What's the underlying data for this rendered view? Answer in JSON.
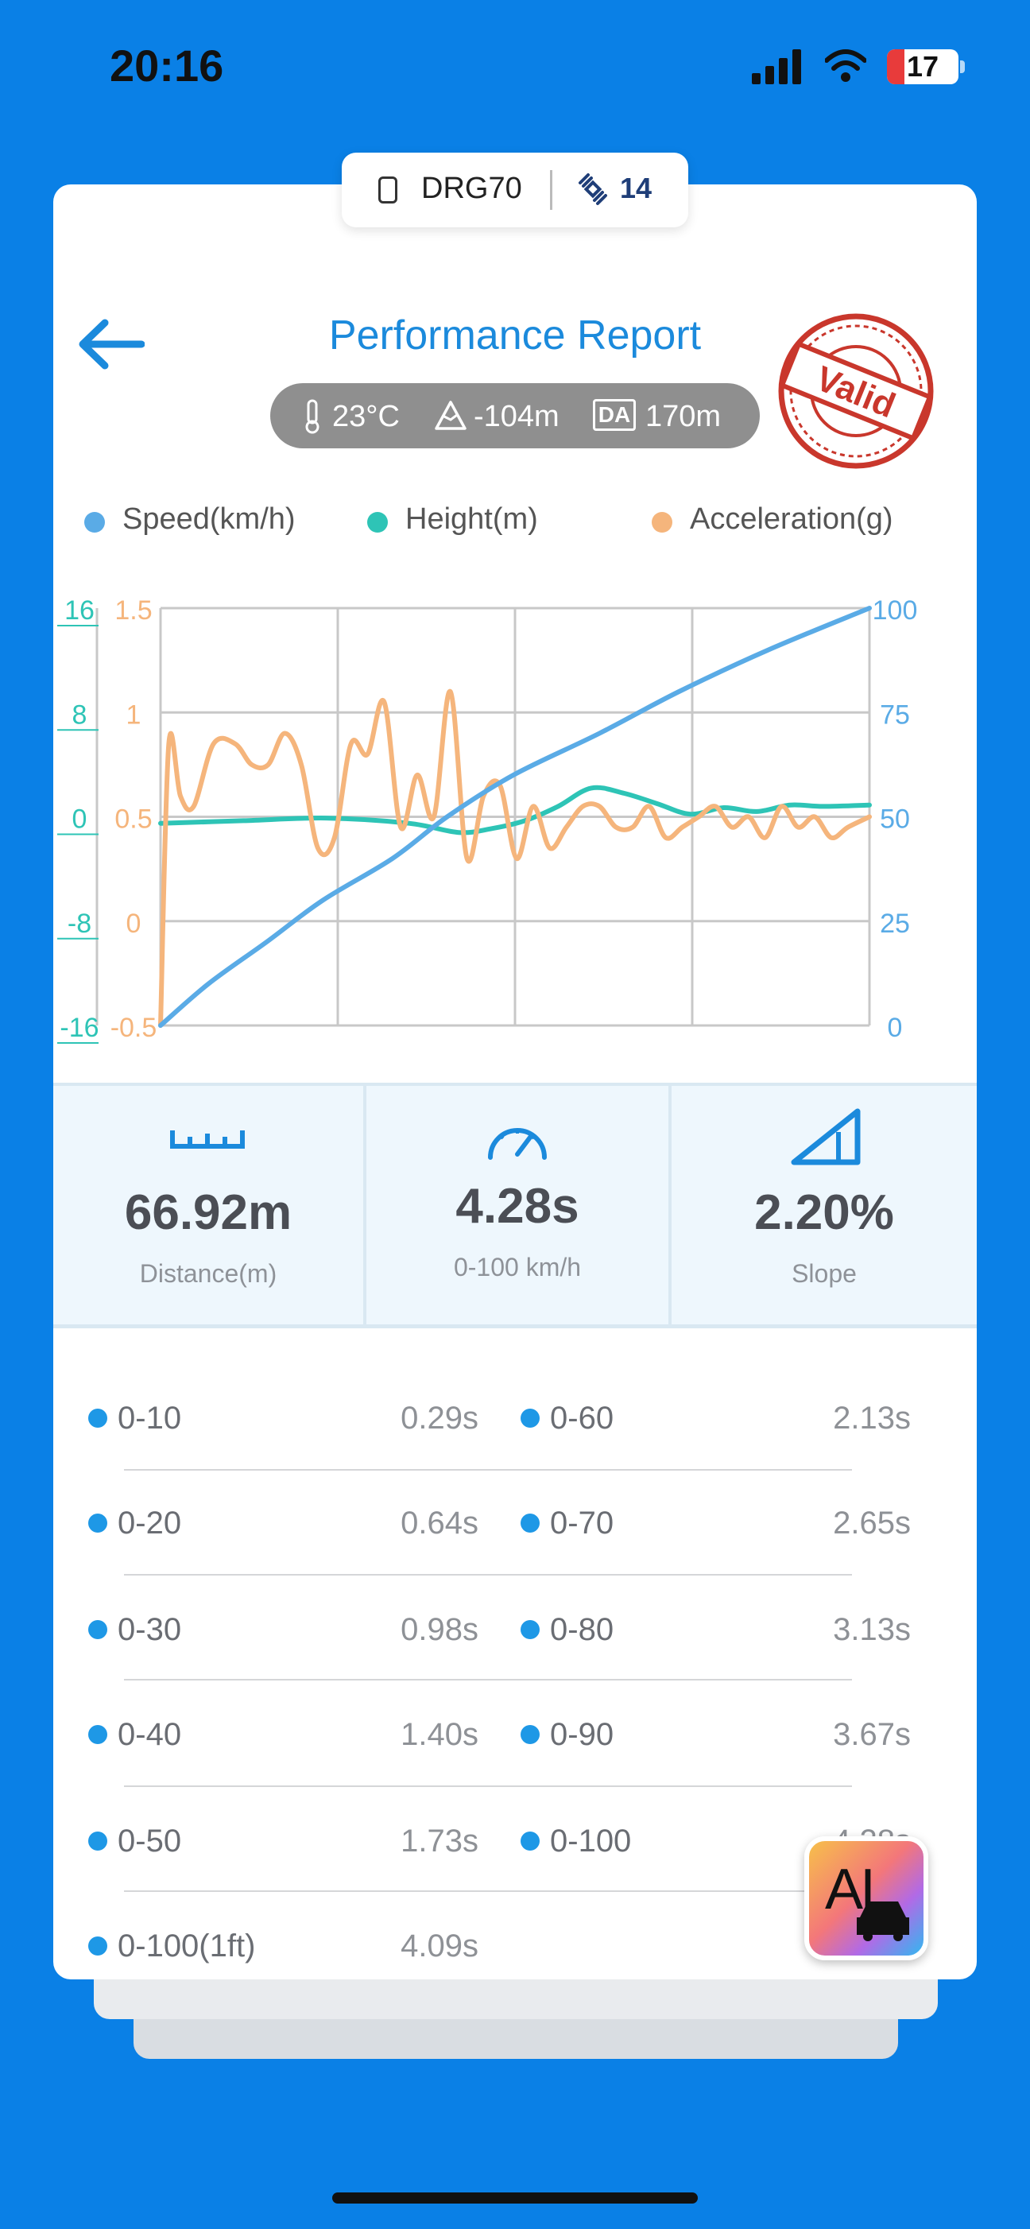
{
  "status_bar": {
    "time": "20:16",
    "battery": "17"
  },
  "device": {
    "name": "DRG70",
    "satellites": "14"
  },
  "header": {
    "title": "Performance Report",
    "stamp_text": "Valid"
  },
  "conditions": {
    "temperature": "23°C",
    "altitude": "-104m",
    "da_badge": "DA",
    "density_altitude": "170m"
  },
  "legend": [
    {
      "label": "Speed(km/h)",
      "color": "#5aabe6"
    },
    {
      "label": "Height(m)",
      "color": "#2ec4b6"
    },
    {
      "label": "Acceleration(g)",
      "color": "#f5b57c"
    }
  ],
  "chart_data": {
    "type": "line",
    "x_range": [
      0,
      4.28
    ],
    "axes": {
      "left_height_ticks": [
        "16",
        "8",
        "0",
        "-8",
        "-16"
      ],
      "left_accel_ticks": [
        "1.5",
        "1",
        "0.5",
        "0",
        "-0.5"
      ],
      "right_speed_ticks": [
        "100",
        "75",
        "50",
        "25",
        "0"
      ],
      "ylim_height": [
        -16,
        16
      ],
      "ylim_accel": [
        -0.5,
        1.5
      ],
      "ylim_speed": [
        0,
        100
      ]
    },
    "grid": true,
    "series": [
      {
        "name": "Speed(km/h)",
        "color": "#5aabe6",
        "axis": "speed",
        "x": [
          0,
          0.29,
          0.64,
          0.98,
          1.4,
          1.73,
          2.13,
          2.65,
          3.13,
          3.67,
          4.28
        ],
        "y": [
          0,
          10,
          20,
          30,
          40,
          50,
          60,
          70,
          80,
          90,
          100
        ]
      },
      {
        "name": "Height(m)",
        "color": "#2ec4b6",
        "axis": "height",
        "x": [
          0,
          0.5,
          1.0,
          1.5,
          1.8,
          2.0,
          2.2,
          2.4,
          2.6,
          2.8,
          3.0,
          3.2,
          3.4,
          3.6,
          3.8,
          4.0,
          4.28
        ],
        "y": [
          -0.5,
          -0.3,
          -0.1,
          -0.5,
          -1.2,
          -0.9,
          -0.3,
          0.8,
          2.2,
          1.8,
          1.0,
          0.2,
          0.7,
          0.4,
          0.9,
          0.8,
          0.9
        ]
      },
      {
        "name": "Acceleration(g)",
        "color": "#f5b57c",
        "axis": "accel",
        "x": [
          0,
          0.05,
          0.12,
          0.2,
          0.32,
          0.45,
          0.55,
          0.65,
          0.75,
          0.85,
          0.95,
          1.05,
          1.15,
          1.25,
          1.35,
          1.45,
          1.55,
          1.65,
          1.75,
          1.85,
          1.95,
          2.05,
          2.15,
          2.25,
          2.35,
          2.45,
          2.55,
          2.65,
          2.75,
          2.85,
          2.95,
          3.05,
          3.15,
          3.25,
          3.35,
          3.45,
          3.55,
          3.65,
          3.75,
          3.85,
          3.95,
          4.05,
          4.15,
          4.28
        ],
        "y": [
          -0.5,
          0.85,
          0.6,
          0.55,
          0.85,
          0.85,
          0.75,
          0.75,
          0.9,
          0.75,
          0.35,
          0.4,
          0.85,
          0.8,
          1.05,
          0.45,
          0.7,
          0.5,
          1.1,
          0.3,
          0.6,
          0.65,
          0.3,
          0.55,
          0.35,
          0.45,
          0.55,
          0.55,
          0.45,
          0.45,
          0.55,
          0.4,
          0.45,
          0.5,
          0.55,
          0.45,
          0.5,
          0.4,
          0.55,
          0.45,
          0.5,
          0.4,
          0.45,
          0.5
        ]
      }
    ]
  },
  "metrics": [
    {
      "value": "66.92m",
      "caption": "Distance(m)",
      "icon": "ruler-icon"
    },
    {
      "value": "4.28s",
      "caption": "0-100 km/h",
      "icon": "speedometer-icon"
    },
    {
      "value": "2.20%",
      "caption": "Slope",
      "icon": "slope-icon"
    }
  ],
  "splits_left": [
    {
      "label": "0-10",
      "value": "0.29s"
    },
    {
      "label": "0-20",
      "value": "0.64s"
    },
    {
      "label": "0-30",
      "value": "0.98s"
    },
    {
      "label": "0-40",
      "value": "1.40s"
    },
    {
      "label": "0-50",
      "value": "1.73s"
    },
    {
      "label": "0-100(1ft)",
      "value": "4.09s"
    }
  ],
  "splits_right": [
    {
      "label": "0-60",
      "value": "2.13s"
    },
    {
      "label": "0-70",
      "value": "2.65s"
    },
    {
      "label": "0-80",
      "value": "3.13s"
    },
    {
      "label": "0-90",
      "value": "3.67s"
    },
    {
      "label": "0-100",
      "value": "4.28s"
    }
  ],
  "ai_button": {
    "label": "AI"
  }
}
